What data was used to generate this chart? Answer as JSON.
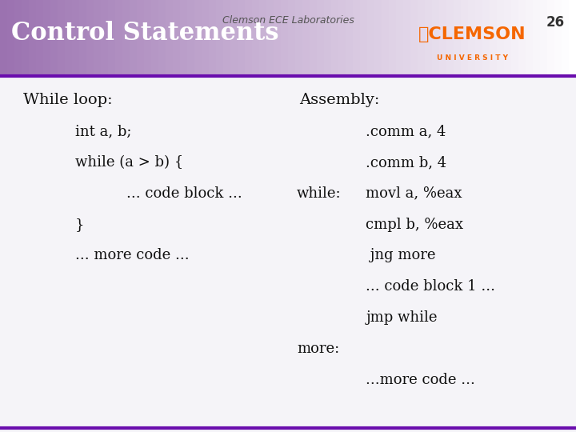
{
  "header_text": "Clemson ECE Laboratories",
  "slide_number": "26",
  "title": "Control Statements",
  "header_bg_color": "#9b72b0",
  "header_gradient_end": "#ffffff",
  "title_color": "#ffffff",
  "title_fontsize": 22,
  "body_bg_color": "#f5f4f8",
  "border_color": "#6a0dad",
  "left_heading": "While loop:",
  "left_lines": [
    {
      "text": "int a, b;",
      "indent": 0.13
    },
    {
      "text": "while (a > b) {",
      "indent": 0.13
    },
    {
      "text": "... code block ...",
      "indent": 0.22
    },
    {
      "text": "}",
      "indent": 0.13
    },
    {
      "text": "... more code ...",
      "indent": 0.13
    }
  ],
  "right_heading": "Assembly:",
  "right_lines": [
    {
      "text": ".comm a, 4",
      "label": "",
      "indent": 0.6
    },
    {
      "text": ".comm b, 4",
      "label": "",
      "indent": 0.6
    },
    {
      "text": "movl a, %eax",
      "label": "while:",
      "indent": 0.6
    },
    {
      "text": "cmpl b, %eax",
      "label": "",
      "indent": 0.6
    },
    {
      "text": " jng more",
      "label": "",
      "indent": 0.6
    },
    {
      "text": "... code block 1 ...",
      "label": "",
      "indent": 0.6
    },
    {
      "text": "jmp while",
      "label": "",
      "indent": 0.6
    }
  ],
  "more_label": "more:",
  "more_code": "...more code ...",
  "header_fontsize": 9,
  "slide_num_fontsize": 12,
  "body_fontsize": 13,
  "heading_fontsize": 14,
  "clemson_orange": "#f56600",
  "clemson_purple": "#522d80"
}
